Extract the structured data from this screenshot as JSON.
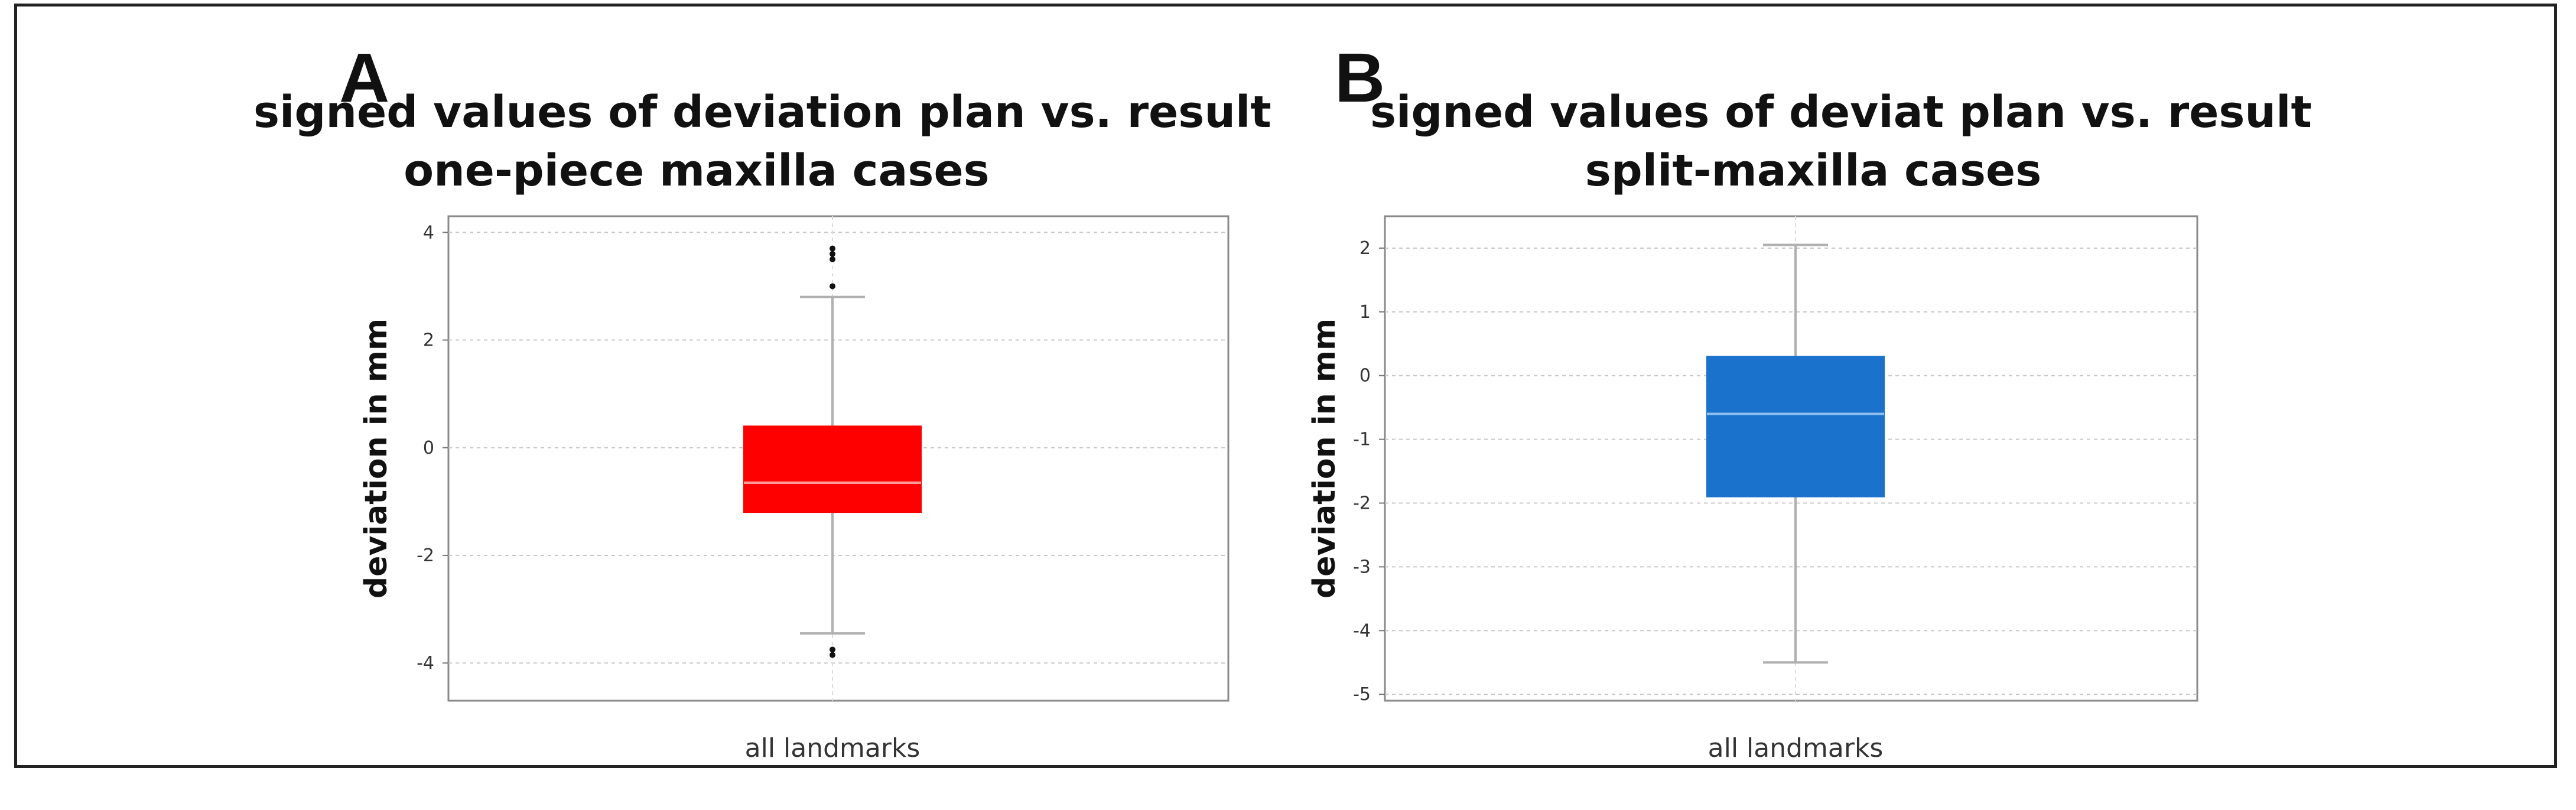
{
  "chart_data": [
    {
      "panel_letter": "A",
      "type": "box",
      "title_lines": [
        "signed values of deviation plan vs. result",
        "one-piece maxilla cases"
      ],
      "ylabel": "deviation in mm",
      "categories": [
        "all landmarks"
      ],
      "ylim": [
        -4.7,
        4.3
      ],
      "yticks": [
        -4,
        -2,
        0,
        2,
        4
      ],
      "grid": true,
      "box": {
        "whisker_low": -3.45,
        "q1": -1.2,
        "median": -0.65,
        "q3": 0.4,
        "whisker_high": 2.8
      },
      "outliers": [
        3.7,
        3.6,
        3.5,
        3.0,
        -3.75,
        -3.85
      ],
      "color": "#ff0000",
      "median_color": "#ff9a9a"
    },
    {
      "panel_letter": "B",
      "type": "box",
      "title_lines": [
        "signed values of deviat plan vs. result",
        "split-maxilla cases"
      ],
      "ylabel": "deviation in mm",
      "categories": [
        "all landmarks"
      ],
      "ylim": [
        -5.1,
        2.5
      ],
      "yticks": [
        -5,
        -4,
        -3,
        -2,
        -1,
        0,
        1,
        2
      ],
      "grid": true,
      "box": {
        "whisker_low": -4.5,
        "q1": -1.9,
        "median": -0.6,
        "q3": 0.3,
        "whisker_high": 2.05
      },
      "outliers": [],
      "color": "#1a72cc",
      "median_color": "#8fc0ef"
    }
  ]
}
